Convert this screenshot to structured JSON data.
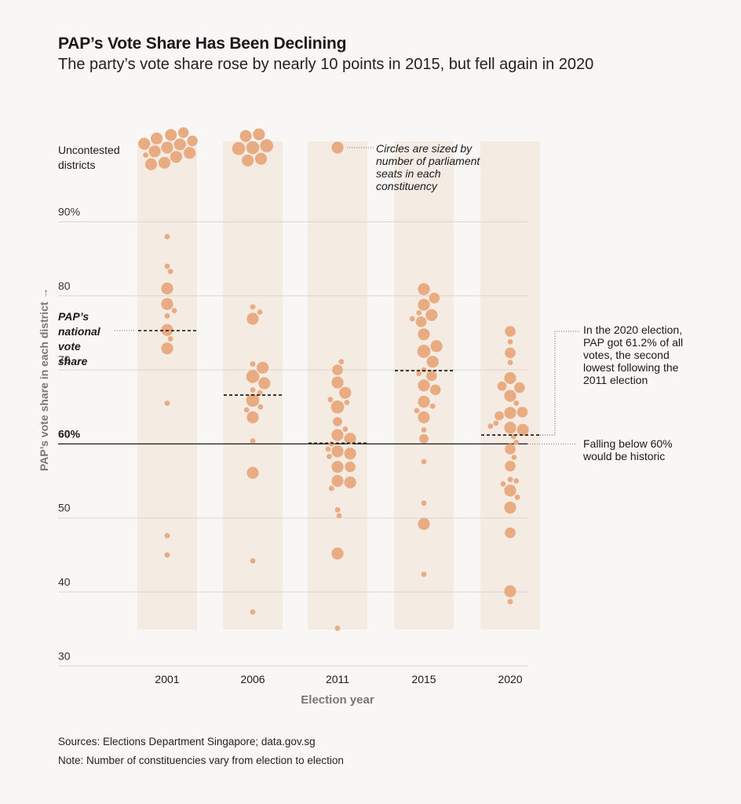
{
  "header": {
    "title": "PAP’s Vote Share Has Been Declining",
    "subtitle": "The party’s vote share rose by nearly 10 points in 2015, but fell again in 2020"
  },
  "footer": {
    "source": "Sources: Elections Department Singapore; data.gov.sg",
    "note": "Note: Number of constituencies vary from election to election"
  },
  "colors": {
    "bubble": "#e9ac82",
    "column_band": "#f4ebe2",
    "gridline": "#d9d5d1",
    "threshold_line": "#1a1a1a",
    "axis_text": "#777777",
    "text": "#1a1a1a"
  },
  "chart_data": {
    "type": "scatter",
    "subtype": "beeswarm",
    "xlabel": "Election year",
    "ylabel": "PAP’s vote share in each district →",
    "ylim": [
      30,
      100
    ],
    "y_ticks": [
      "30",
      "40",
      "50",
      "60%",
      "70",
      "80",
      "90%"
    ],
    "categories": [
      "2001",
      "2006",
      "2011",
      "2015",
      "2020"
    ],
    "uncontested_label": "Uncontested districts",
    "size_legend": "Circles are sized by number of parliament seats in each constituency",
    "national_label": "PAP’s national vote share",
    "threshold": {
      "value": 60,
      "label": "Falling below 60% would be historic"
    },
    "callout": "In the 2020 election, PAP got 61.2% of all votes, the second lowest following the 2011 election",
    "series": [
      {
        "year": "2001",
        "national_share": 75.3,
        "uncontested_seats": [
          5,
          5,
          4,
          5,
          5,
          5,
          5,
          5,
          5,
          4,
          5,
          5,
          1
        ],
        "districts": [
          {
            "v": 88.0,
            "s": 1
          },
          {
            "v": 84.0,
            "s": 1
          },
          {
            "v": 83.3,
            "s": 1
          },
          {
            "v": 81.0,
            "s": 5
          },
          {
            "v": 78.9,
            "s": 5
          },
          {
            "v": 78.0,
            "s": 1
          },
          {
            "v": 77.3,
            "s": 1
          },
          {
            "v": 75.4,
            "s": 5
          },
          {
            "v": 74.2,
            "s": 1
          },
          {
            "v": 72.9,
            "s": 5
          },
          {
            "v": 65.5,
            "s": 1
          },
          {
            "v": 47.6,
            "s": 1
          },
          {
            "v": 45.0,
            "s": 1
          }
        ]
      },
      {
        "year": "2006",
        "national_share": 66.6,
        "uncontested_seats": [
          5,
          6,
          5,
          5,
          6,
          6,
          5
        ],
        "districts": [
          {
            "v": 78.5,
            "s": 1
          },
          {
            "v": 77.8,
            "s": 1
          },
          {
            "v": 76.9,
            "s": 5
          },
          {
            "v": 70.8,
            "s": 1
          },
          {
            "v": 70.3,
            "s": 5
          },
          {
            "v": 69.1,
            "s": 6
          },
          {
            "v": 68.2,
            "s": 5
          },
          {
            "v": 67.3,
            "s": 1
          },
          {
            "v": 66.9,
            "s": 1
          },
          {
            "v": 65.9,
            "s": 6
          },
          {
            "v": 65.0,
            "s": 1
          },
          {
            "v": 64.6,
            "s": 1
          },
          {
            "v": 63.6,
            "s": 5
          },
          {
            "v": 60.4,
            "s": 1
          },
          {
            "v": 56.1,
            "s": 5
          },
          {
            "v": 44.2,
            "s": 1
          },
          {
            "v": 37.3,
            "s": 1
          }
        ]
      },
      {
        "year": "2011",
        "national_share": 60.1,
        "uncontested_seats": [
          5
        ],
        "districts": [
          {
            "v": 71.1,
            "s": 1
          },
          {
            "v": 70.0,
            "s": 4
          },
          {
            "v": 68.3,
            "s": 5
          },
          {
            "v": 66.9,
            "s": 5
          },
          {
            "v": 66.0,
            "s": 1
          },
          {
            "v": 65.6,
            "s": 1
          },
          {
            "v": 65.0,
            "s": 6
          },
          {
            "v": 63.0,
            "s": 3
          },
          {
            "v": 62.0,
            "s": 1
          },
          {
            "v": 61.2,
            "s": 5
          },
          {
            "v": 60.7,
            "s": 5
          },
          {
            "v": 60.0,
            "s": 1
          },
          {
            "v": 59.3,
            "s": 1
          },
          {
            "v": 59.0,
            "s": 5
          },
          {
            "v": 58.7,
            "s": 5
          },
          {
            "v": 58.3,
            "s": 1
          },
          {
            "v": 56.9,
            "s": 5
          },
          {
            "v": 56.9,
            "s": 4
          },
          {
            "v": 55.0,
            "s": 5
          },
          {
            "v": 54.8,
            "s": 5
          },
          {
            "v": 54.0,
            "s": 1
          },
          {
            "v": 51.1,
            "s": 1
          },
          {
            "v": 50.3,
            "s": 1
          },
          {
            "v": 45.2,
            "s": 5
          },
          {
            "v": 35.1,
            "s": 1
          }
        ]
      },
      {
        "year": "2015",
        "national_share": 69.9,
        "uncontested_seats": [],
        "districts": [
          {
            "v": 80.9,
            "s": 5
          },
          {
            "v": 79.7,
            "s": 4
          },
          {
            "v": 78.8,
            "s": 5
          },
          {
            "v": 77.7,
            "s": 1
          },
          {
            "v": 77.4,
            "s": 5
          },
          {
            "v": 76.9,
            "s": 1
          },
          {
            "v": 76.5,
            "s": 4
          },
          {
            "v": 74.8,
            "s": 5
          },
          {
            "v": 73.2,
            "s": 5
          },
          {
            "v": 72.5,
            "s": 6
          },
          {
            "v": 71.1,
            "s": 5
          },
          {
            "v": 70.0,
            "s": 1
          },
          {
            "v": 69.5,
            "s": 1
          },
          {
            "v": 69.2,
            "s": 4
          },
          {
            "v": 67.9,
            "s": 5
          },
          {
            "v": 67.3,
            "s": 4
          },
          {
            "v": 65.7,
            "s": 5
          },
          {
            "v": 65.1,
            "s": 1
          },
          {
            "v": 64.5,
            "s": 1
          },
          {
            "v": 63.6,
            "s": 5
          },
          {
            "v": 61.9,
            "s": 1
          },
          {
            "v": 60.7,
            "s": 3
          },
          {
            "v": 57.6,
            "s": 1
          },
          {
            "v": 52.0,
            "s": 1
          },
          {
            "v": 49.2,
            "s": 5
          },
          {
            "v": 42.4,
            "s": 1
          }
        ]
      },
      {
        "year": "2020",
        "national_share": 61.2,
        "uncontested_seats": [],
        "districts": [
          {
            "v": 75.2,
            "s": 4
          },
          {
            "v": 73.8,
            "s": 1
          },
          {
            "v": 72.3,
            "s": 4
          },
          {
            "v": 71.0,
            "s": 1
          },
          {
            "v": 68.9,
            "s": 5
          },
          {
            "v": 67.8,
            "s": 3
          },
          {
            "v": 67.6,
            "s": 4
          },
          {
            "v": 66.5,
            "s": 5
          },
          {
            "v": 65.5,
            "s": 1
          },
          {
            "v": 64.3,
            "s": 4
          },
          {
            "v": 64.2,
            "s": 5
          },
          {
            "v": 63.8,
            "s": 3
          },
          {
            "v": 62.8,
            "s": 1
          },
          {
            "v": 62.4,
            "s": 1
          },
          {
            "v": 62.2,
            "s": 5
          },
          {
            "v": 61.9,
            "s": 5
          },
          {
            "v": 61.0,
            "s": 1
          },
          {
            "v": 60.2,
            "s": 1
          },
          {
            "v": 59.3,
            "s": 4
          },
          {
            "v": 58.2,
            "s": 1
          },
          {
            "v": 57.0,
            "s": 4
          },
          {
            "v": 55.2,
            "s": 1
          },
          {
            "v": 55.0,
            "s": 1
          },
          {
            "v": 54.6,
            "s": 1
          },
          {
            "v": 53.7,
            "s": 5
          },
          {
            "v": 52.8,
            "s": 1
          },
          {
            "v": 51.4,
            "s": 5
          },
          {
            "v": 48.0,
            "s": 4
          },
          {
            "v": 40.1,
            "s": 5
          },
          {
            "v": 38.7,
            "s": 1
          }
        ]
      }
    ]
  }
}
